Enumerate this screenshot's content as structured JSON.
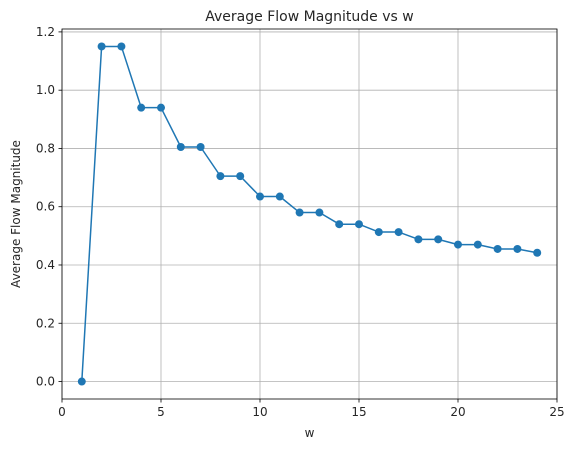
{
  "chart_data": {
    "type": "line",
    "title": "Average Flow Magnitude vs w",
    "xlabel": "w",
    "ylabel": "Average Flow Magnitude",
    "xlim": [
      0.0,
      25.0
    ],
    "ylim": [
      -0.06,
      1.21
    ],
    "xticks": [
      0,
      5,
      10,
      15,
      20,
      25
    ],
    "xtick_labels": [
      "0",
      "5",
      "10",
      "15",
      "20",
      "25"
    ],
    "yticks": [
      0.0,
      0.2,
      0.4,
      0.6,
      0.8,
      1.0,
      1.2
    ],
    "ytick_labels": [
      "0.0",
      "0.2",
      "0.4",
      "0.6",
      "0.8",
      "1.0",
      "1.2"
    ],
    "grid": true,
    "legend": "none",
    "series": [
      {
        "color": "#1f77b4",
        "marker": "circle",
        "x": [
          1,
          2,
          3,
          4,
          5,
          6,
          7,
          8,
          9,
          10,
          11,
          12,
          13,
          14,
          15,
          16,
          17,
          18,
          19,
          20,
          21,
          22,
          23,
          24
        ],
        "y": [
          0.0,
          1.15,
          1.15,
          0.94,
          0.94,
          0.805,
          0.805,
          0.705,
          0.705,
          0.635,
          0.635,
          0.58,
          0.58,
          0.54,
          0.54,
          0.513,
          0.513,
          0.488,
          0.488,
          0.47,
          0.47,
          0.455,
          0.455,
          0.442
        ]
      }
    ]
  }
}
